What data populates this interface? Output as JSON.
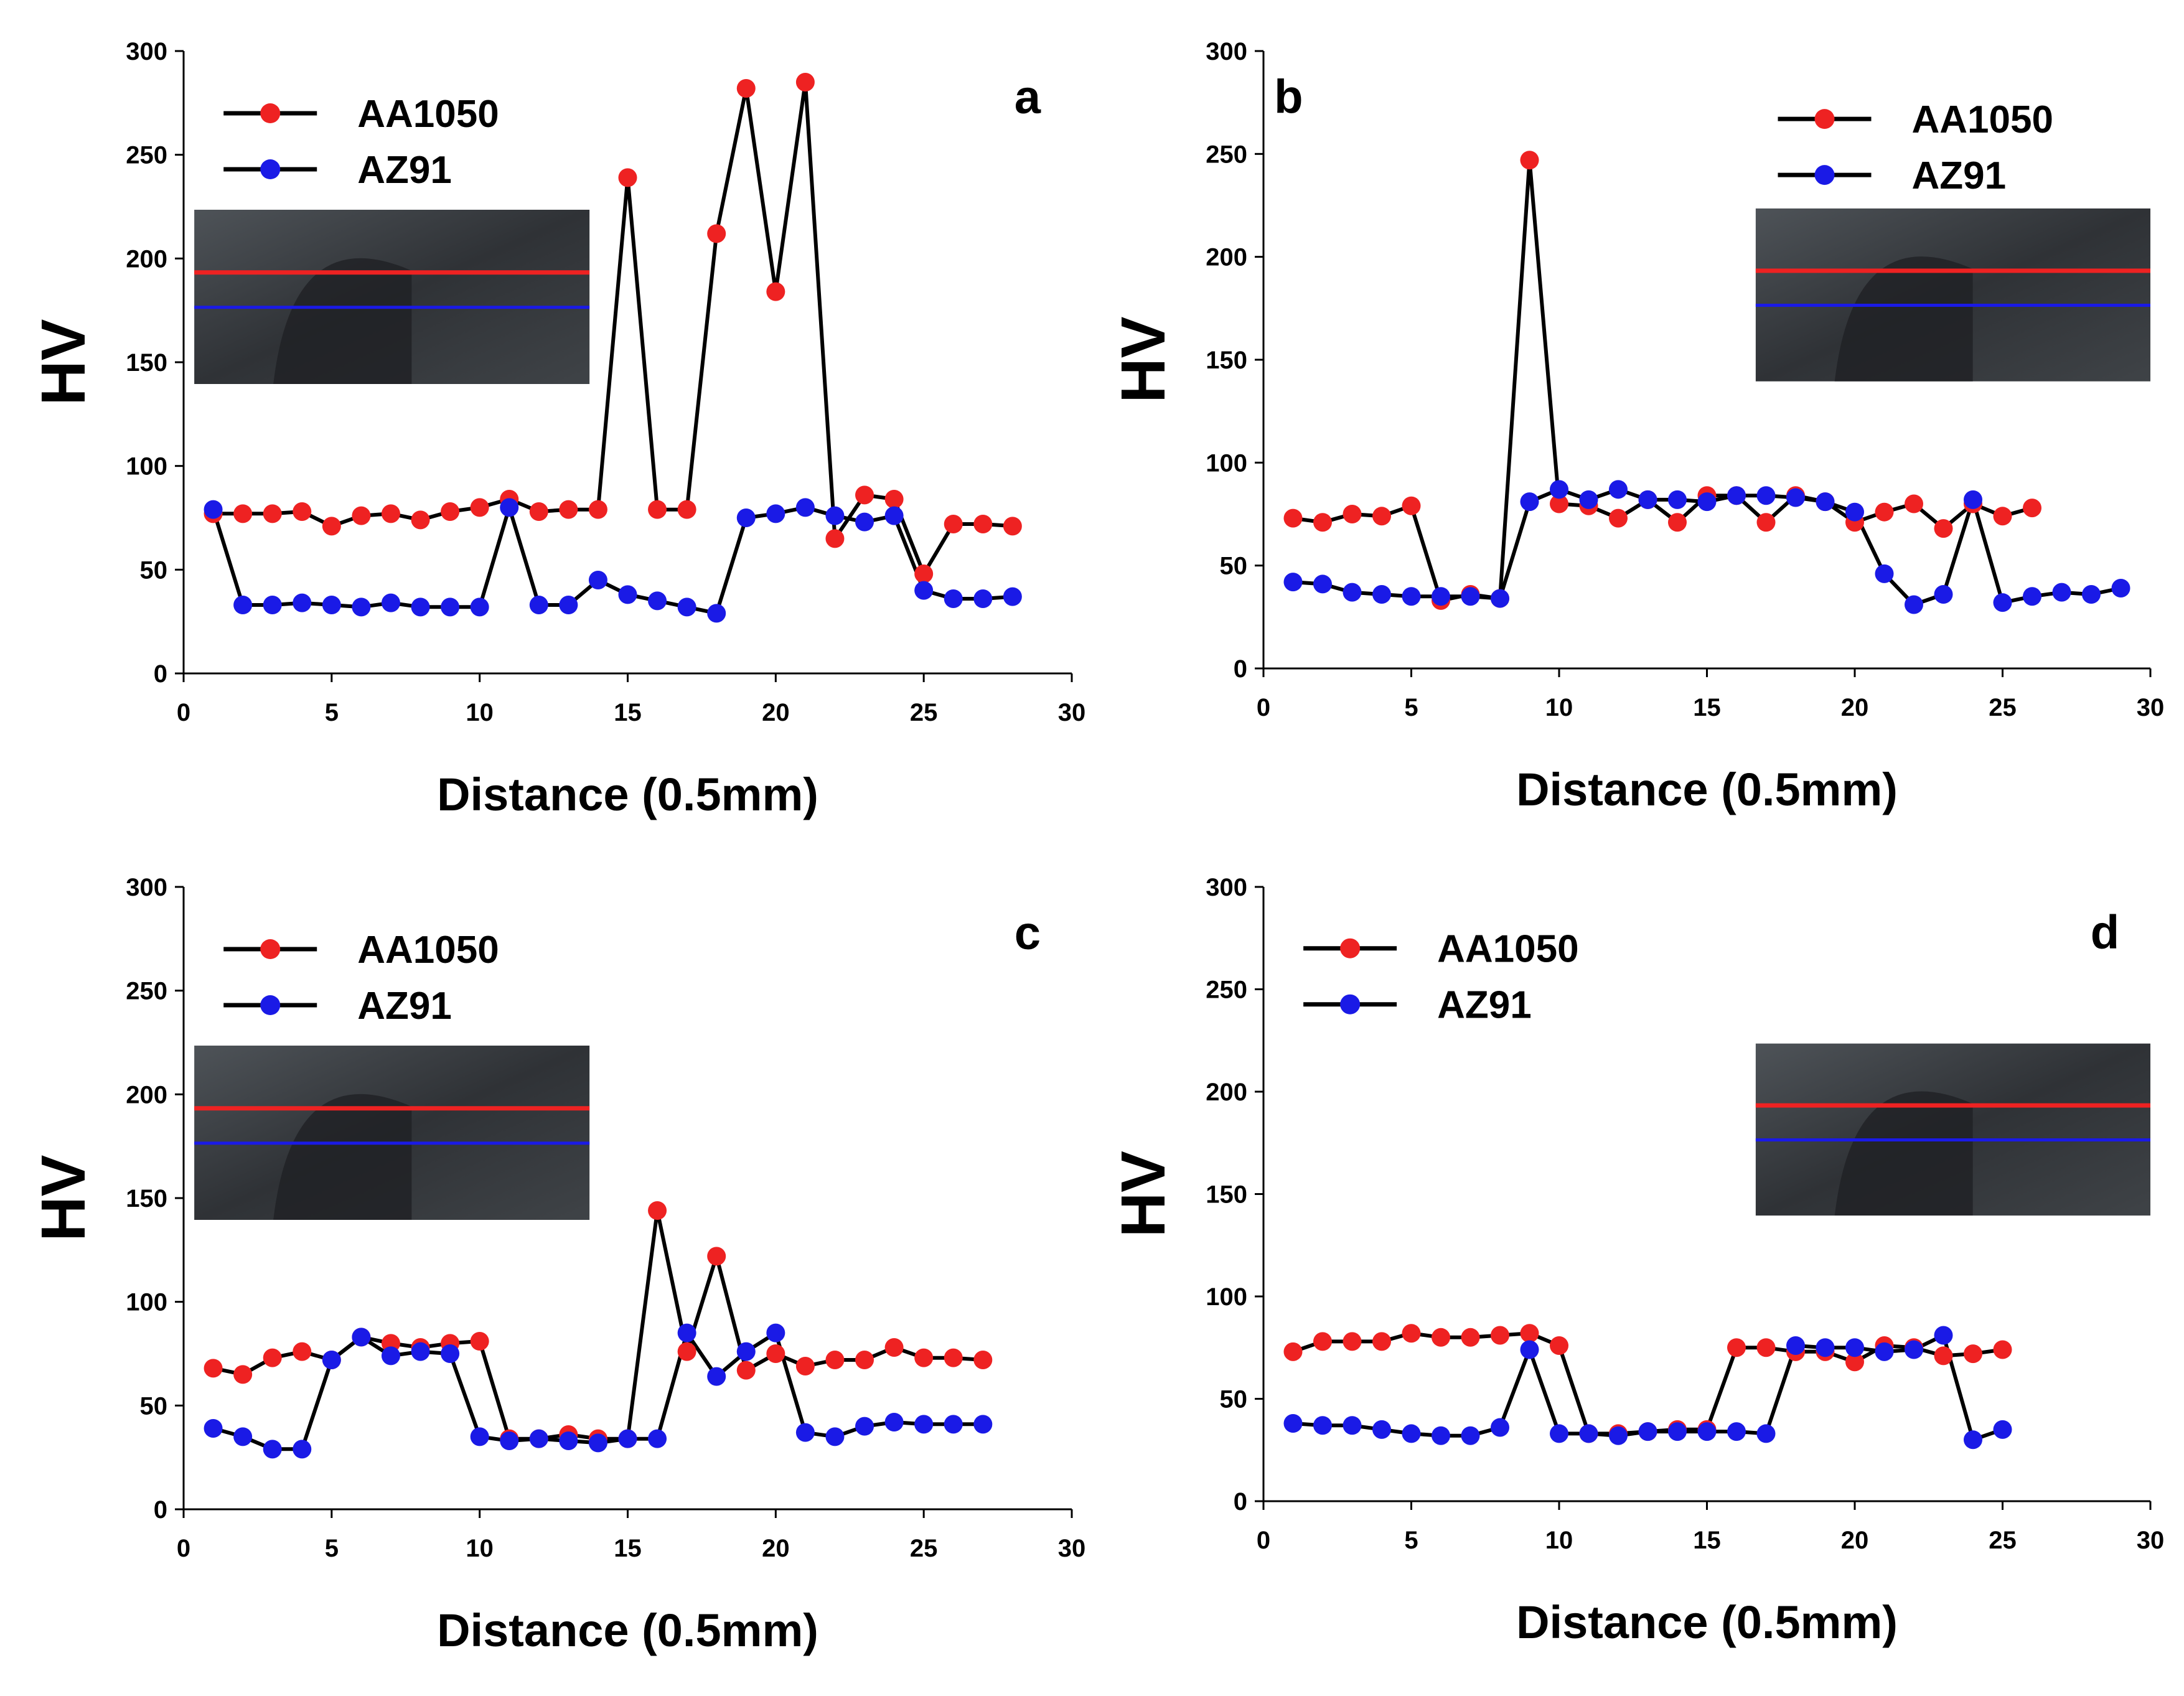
{
  "colors": {
    "aa1050": "#ee2222",
    "az91": "#1a1ae6",
    "line": "#000000",
    "axis": "#000000"
  },
  "chart_data": [
    {
      "panel": "a",
      "type": "line",
      "title": "",
      "xlabel": "Distance (0.5mm)",
      "ylabel": "HV",
      "xlim": [
        0,
        30
      ],
      "ylim": [
        0,
        300
      ],
      "xticks": [
        0,
        5,
        10,
        15,
        20,
        25,
        30
      ],
      "yticks": [
        0,
        50,
        100,
        150,
        200,
        250,
        300
      ],
      "legend": "top-left",
      "inset": "left",
      "series": [
        {
          "name": "AA1050",
          "x": [
            1,
            2,
            3,
            4,
            5,
            6,
            7,
            8,
            9,
            10,
            11,
            12,
            13,
            14,
            15,
            16,
            17,
            18,
            19,
            20,
            21,
            22,
            23,
            24,
            25,
            26,
            27,
            28
          ],
          "y": [
            77,
            77,
            77,
            78,
            71,
            76,
            77,
            74,
            78,
            80,
            84,
            78,
            79,
            79,
            239,
            79,
            79,
            212,
            282,
            184,
            285,
            65,
            86,
            84,
            48,
            72,
            72,
            71
          ]
        },
        {
          "name": "AZ91",
          "x": [
            1,
            2,
            3,
            4,
            5,
            6,
            7,
            8,
            9,
            10,
            11,
            12,
            13,
            14,
            15,
            16,
            17,
            18,
            19,
            20,
            21,
            22,
            23,
            24,
            25,
            26,
            27,
            28
          ],
          "y": [
            79,
            33,
            33,
            34,
            33,
            32,
            34,
            32,
            32,
            32,
            80,
            33,
            33,
            45,
            38,
            35,
            32,
            29,
            75,
            77,
            80,
            76,
            73,
            76,
            40,
            36,
            36,
            37
          ]
        }
      ]
    },
    {
      "panel": "b",
      "type": "line",
      "title": "",
      "xlabel": "Distance (0.5mm)",
      "ylabel": "HV",
      "xlim": [
        0,
        30
      ],
      "ylim": [
        0,
        300
      ],
      "xticks": [
        0,
        5,
        10,
        15,
        20,
        25,
        30
      ],
      "yticks": [
        0,
        50,
        100,
        150,
        200,
        250,
        300
      ],
      "legend": "top-right",
      "inset": "right",
      "series": [
        {
          "name": "AA1050",
          "x": [
            1,
            2,
            3,
            4,
            5,
            6,
            7,
            8,
            9,
            10,
            11,
            12,
            13,
            14,
            15,
            16,
            17,
            18,
            19,
            20,
            21,
            22,
            23,
            24,
            25,
            26
          ],
          "y": [
            73,
            71,
            75,
            74,
            79,
            33,
            36,
            34,
            247,
            80,
            79,
            73,
            82,
            71,
            84,
            84,
            71,
            84,
            81,
            71,
            76,
            80,
            68,
            80,
            74,
            78
          ]
        },
        {
          "name": "AZ91",
          "x": [
            1,
            2,
            3,
            4,
            5,
            6,
            7,
            8,
            9,
            10,
            11,
            12,
            13,
            14,
            15,
            16,
            17,
            18,
            19,
            20,
            21,
            22,
            23,
            24,
            25,
            26,
            27,
            28,
            29
          ],
          "y": [
            42,
            41,
            37,
            36,
            35,
            35,
            35,
            34,
            81,
            87,
            82,
            87,
            82,
            82,
            81,
            84,
            84,
            83,
            81,
            76,
            46,
            31,
            36,
            82,
            32,
            35,
            37,
            36,
            39
          ]
        }
      ]
    },
    {
      "panel": "c",
      "type": "line",
      "title": "",
      "xlabel": "Distance (0.5mm)",
      "ylabel": "HV",
      "xlim": [
        0,
        30
      ],
      "ylim": [
        0,
        300
      ],
      "xticks": [
        0,
        5,
        10,
        15,
        20,
        25,
        30
      ],
      "yticks": [
        0,
        50,
        100,
        150,
        200,
        250,
        300
      ],
      "legend": "top-left",
      "inset": "left",
      "series": [
        {
          "name": "AA1050",
          "x": [
            1,
            2,
            3,
            4,
            5,
            6,
            7,
            8,
            9,
            10,
            11,
            12,
            13,
            14,
            15,
            16,
            17,
            18,
            19,
            20,
            21,
            22,
            23,
            24,
            25,
            26,
            27
          ],
          "y": [
            68,
            65,
            73,
            76,
            72,
            83,
            80,
            78,
            80,
            81,
            34,
            34,
            36,
            34,
            34,
            144,
            76,
            122,
            67,
            75,
            69,
            72,
            72,
            78,
            73,
            73,
            72
          ]
        },
        {
          "name": "AZ91",
          "x": [
            1,
            2,
            3,
            4,
            5,
            6,
            7,
            8,
            9,
            10,
            11,
            12,
            13,
            14,
            15,
            16,
            17,
            18,
            19,
            20,
            21,
            22,
            23,
            24,
            25,
            26,
            27
          ],
          "y": [
            39,
            35,
            29,
            29,
            72,
            83,
            74,
            76,
            75,
            35,
            33,
            34,
            33,
            32,
            34,
            34,
            85,
            64,
            76,
            85,
            37,
            35,
            40,
            42,
            41,
            41,
            41
          ]
        }
      ]
    },
    {
      "panel": "d",
      "type": "line",
      "title": "",
      "xlabel": "Distance (0.5mm)",
      "ylabel": "HV",
      "xlim": [
        0,
        30
      ],
      "ylim": [
        0,
        300
      ],
      "xticks": [
        0,
        5,
        10,
        15,
        20,
        25,
        30
      ],
      "yticks": [
        0,
        50,
        100,
        150,
        200,
        250,
        300
      ],
      "legend": "top-left",
      "inset": "right",
      "series": [
        {
          "name": "AA1050",
          "x": [
            1,
            2,
            3,
            4,
            5,
            6,
            7,
            8,
            9,
            10,
            11,
            12,
            13,
            14,
            15,
            16,
            17,
            18,
            19,
            20,
            21,
            22,
            23,
            24,
            25
          ],
          "y": [
            73,
            78,
            78,
            78,
            82,
            80,
            80,
            81,
            82,
            76,
            33,
            33,
            34,
            35,
            35,
            75,
            75,
            73,
            73,
            68,
            76,
            75,
            71,
            72,
            74
          ]
        },
        {
          "name": "AZ91",
          "x": [
            1,
            2,
            3,
            4,
            5,
            6,
            7,
            8,
            9,
            10,
            11,
            12,
            13,
            14,
            15,
            16,
            17,
            18,
            19,
            20,
            21,
            22,
            23,
            24,
            25
          ],
          "y": [
            38,
            37,
            37,
            35,
            33,
            32,
            32,
            36,
            74,
            33,
            33,
            32,
            34,
            34,
            34,
            34,
            33,
            76,
            75,
            75,
            73,
            74,
            81,
            30,
            35
          ]
        }
      ]
    }
  ]
}
